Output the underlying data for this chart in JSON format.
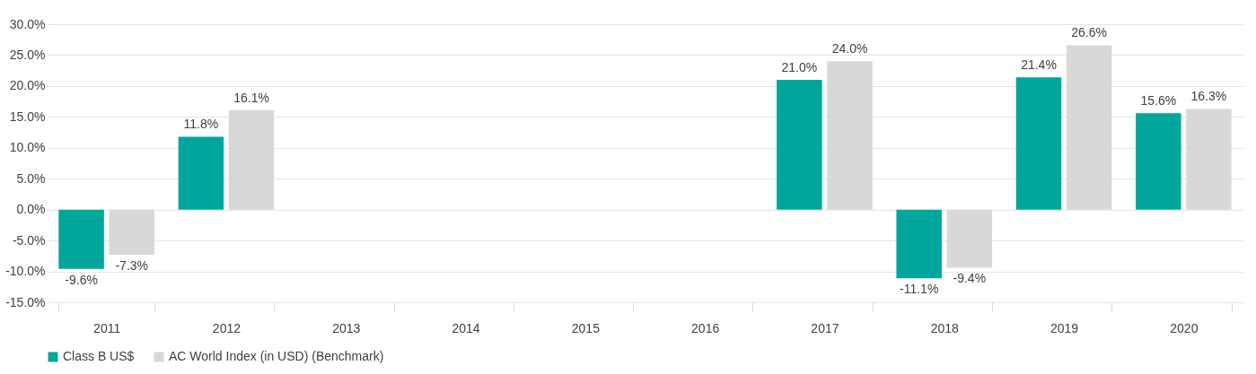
{
  "chart_data": {
    "type": "bar",
    "categories": [
      "2011",
      "2012",
      "2013",
      "2014",
      "2015",
      "2016",
      "2017",
      "2018",
      "2019",
      "2020"
    ],
    "series": [
      {
        "name": "Class B US$",
        "color": "#00a69c",
        "values": [
          -9.6,
          11.8,
          null,
          null,
          null,
          null,
          21.0,
          -11.1,
          21.4,
          15.6
        ],
        "value_labels": [
          "-9.6%",
          "11.8%",
          null,
          null,
          null,
          null,
          "21.0%",
          "-11.1%",
          "21.4%",
          "15.6%"
        ]
      },
      {
        "name": "AC World Index (in USD) (Benchmark)",
        "color": "#d9d8d6",
        "values": [
          -7.3,
          16.1,
          null,
          null,
          null,
          null,
          24.0,
          -9.4,
          26.6,
          16.3
        ],
        "value_labels": [
          "-7.3%",
          "16.1%",
          null,
          null,
          null,
          null,
          "24.0%",
          "-9.4%",
          "26.6%",
          "16.3%"
        ]
      }
    ],
    "ylim": [
      -15,
      30
    ],
    "yticks": [
      {
        "value": -15,
        "label": "-15.0%"
      },
      {
        "value": -10,
        "label": "-10.0%"
      },
      {
        "value": -5,
        "label": "-5.0%"
      },
      {
        "value": 0,
        "label": "0.0%"
      },
      {
        "value": 5,
        "label": "5.0%"
      },
      {
        "value": 10,
        "label": "10.0%"
      },
      {
        "value": 15,
        "label": "15.0%"
      },
      {
        "value": 20,
        "label": "20.0%"
      },
      {
        "value": 25,
        "label": "25.0%"
      },
      {
        "value": 30,
        "label": "30.0%"
      }
    ],
    "grid": "y",
    "legend": "bottom"
  }
}
